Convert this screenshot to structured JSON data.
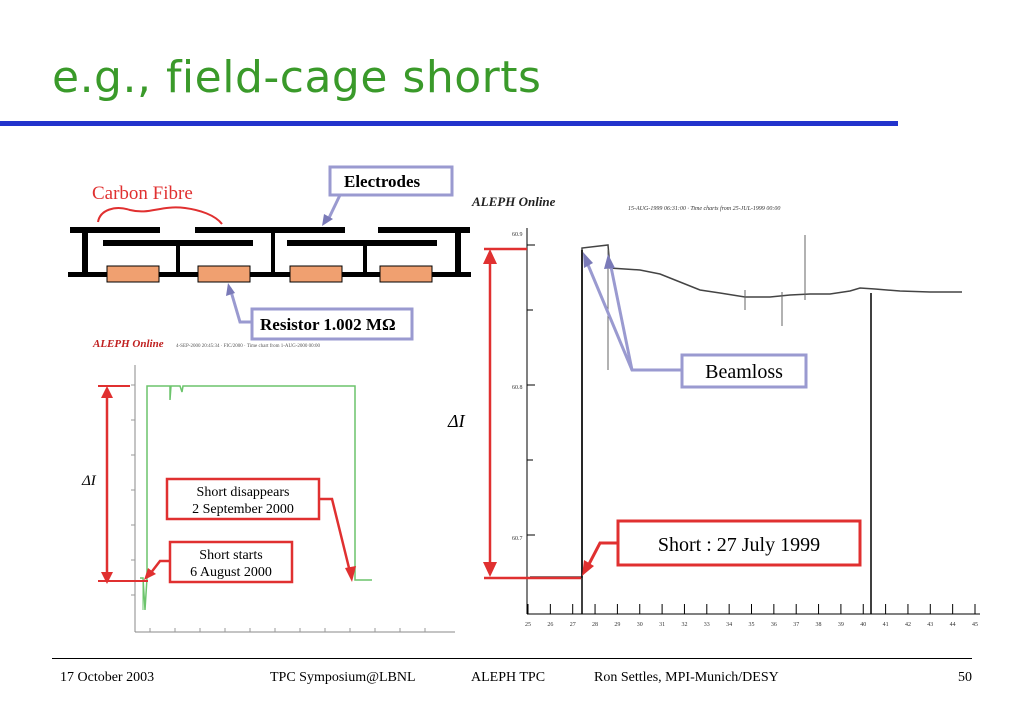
{
  "slide": {
    "title": "e.g., field-cage shorts"
  },
  "schematic": {
    "carbon_fibre_label": "Carbon Fibre",
    "electrodes_label": "Electrodes",
    "resistor_label": "Resistor 1.002 MΩ"
  },
  "left_plot": {
    "header": "ALEPH Online",
    "delta_label": "ΔI",
    "short_disappears_line1": "Short disappears",
    "short_disappears_line2": "2 September 2000",
    "short_starts_line1": "Short starts",
    "short_starts_line2": "6 August 2000"
  },
  "right_plot": {
    "header": "ALEPH Online",
    "delta_label": "ΔI",
    "beamloss_label": "Beamloss",
    "short_label": "Short : 27 July 1999",
    "x_ticks": [
      "25",
      "26",
      "27",
      "28",
      "29",
      "30",
      "31",
      "32",
      "33",
      "34",
      "35",
      "36",
      "37",
      "38",
      "39",
      "40",
      "41",
      "42",
      "43",
      "44",
      "45"
    ]
  },
  "footer": {
    "date": "17 October 2003",
    "event": "TPC Symposium@LBNL",
    "topic": "ALEPH TPC",
    "author": "Ron Settles, MPI-Munich/DESY",
    "page": "50"
  },
  "colors": {
    "title": "#3a9a2a",
    "rule": "#2233cc",
    "annotation_red": "#e03030",
    "callout_border": "#9a9ad0",
    "resistor_fill": "#f0a070",
    "left_trace": "#6cc46c"
  }
}
